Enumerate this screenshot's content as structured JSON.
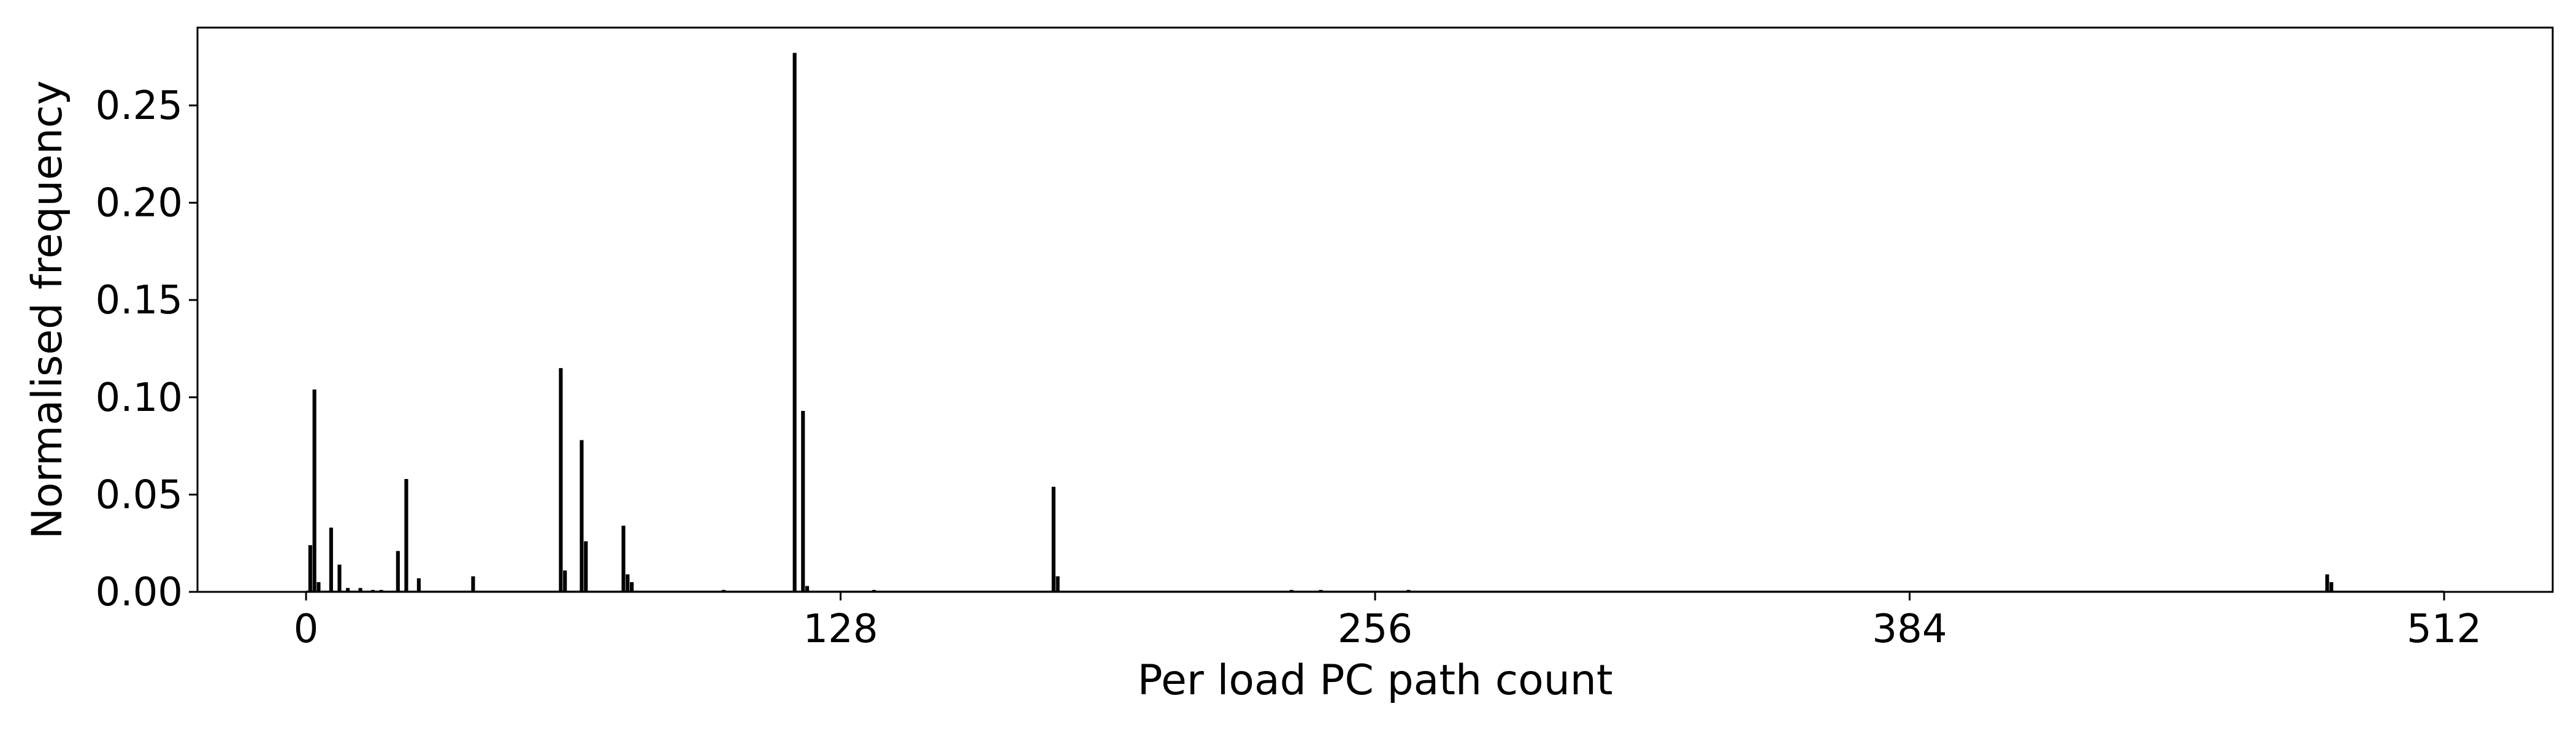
{
  "chart_data": {
    "type": "bar",
    "title": "",
    "xlabel": "Per load PC path count",
    "ylabel": "Normalised frequency",
    "xlim": [
      -26,
      538
    ],
    "ylim": [
      0,
      0.29
    ],
    "grid": false,
    "legend": "none",
    "bar_color": "#000000",
    "x_ticks": [
      0,
      128,
      256,
      384,
      512
    ],
    "x_tick_labels": [
      "0",
      "128",
      "256",
      "384",
      "512"
    ],
    "y_ticks": [
      0.0,
      0.05,
      0.1,
      0.15,
      0.2,
      0.25
    ],
    "y_tick_labels": [
      "0.00",
      "0.05",
      "0.10",
      "0.15",
      "0.20",
      "0.25"
    ],
    "x": [
      1,
      2,
      3,
      6,
      8,
      10,
      13,
      16,
      18,
      22,
      24,
      27,
      40,
      61,
      62,
      66,
      67,
      76,
      77,
      78,
      100,
      117,
      119,
      120,
      136,
      179,
      180,
      236,
      243,
      264,
      484,
      485
    ],
    "values": [
      0.024,
      0.104,
      0.005,
      0.033,
      0.014,
      0.002,
      0.002,
      0.001,
      0.001,
      0.021,
      0.058,
      0.007,
      0.008,
      0.115,
      0.011,
      0.078,
      0.026,
      0.034,
      0.009,
      0.005,
      0.001,
      0.277,
      0.093,
      0.003,
      0.001,
      0.054,
      0.008,
      0.001,
      0.001,
      0.001,
      0.009,
      0.005
    ]
  }
}
